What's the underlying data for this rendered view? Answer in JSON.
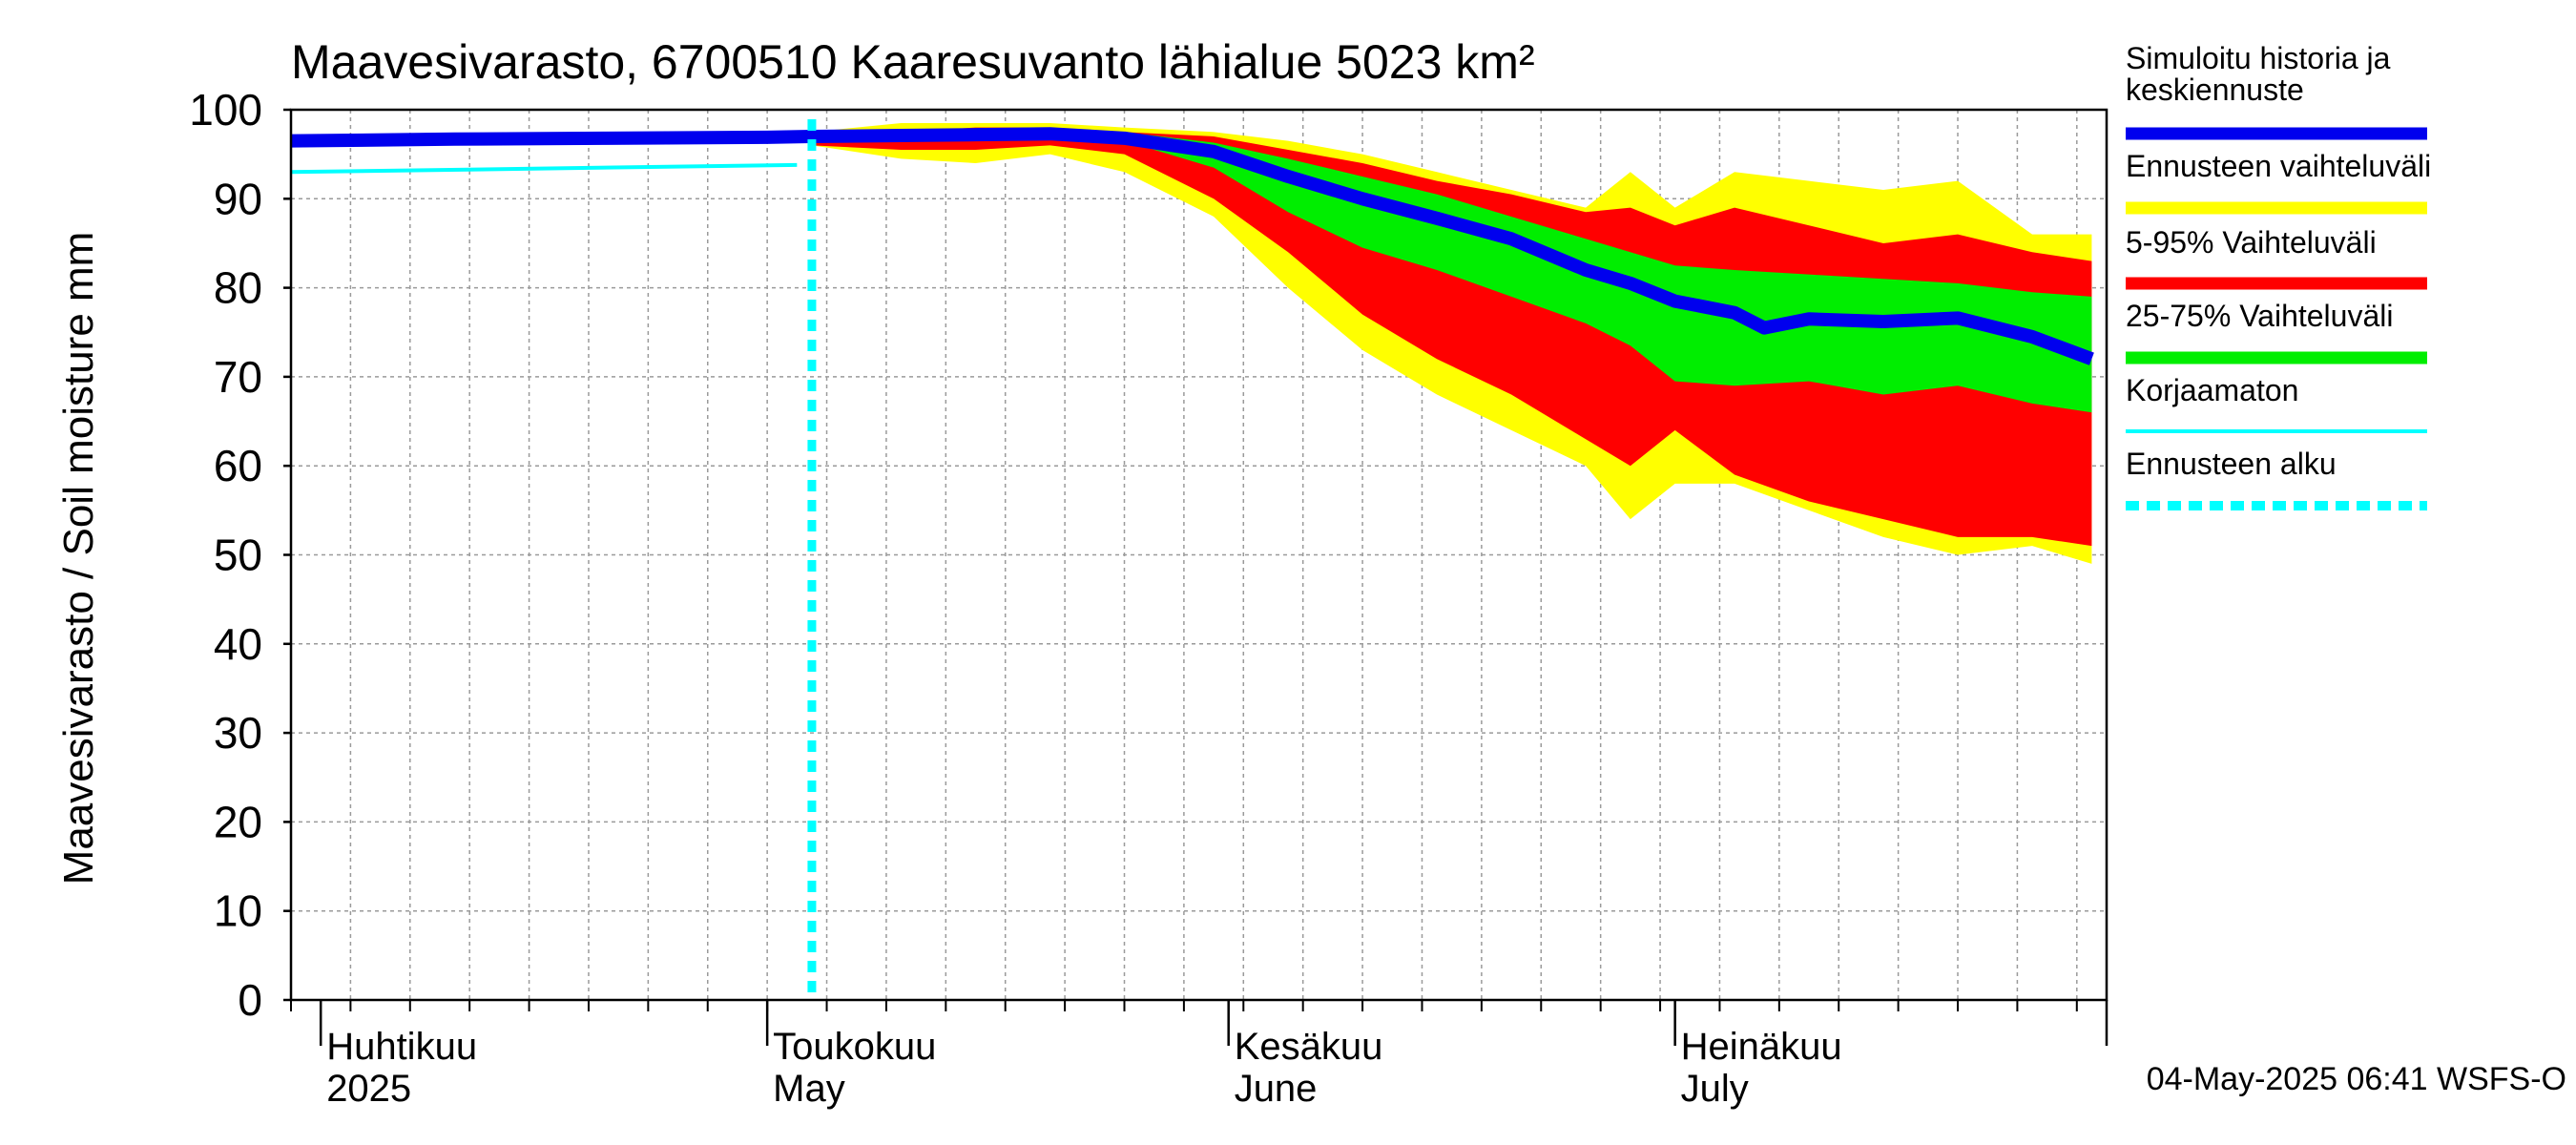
{
  "chart_data": {
    "type": "area",
    "title": "Maavesivarasto, 6700510 Kaaresuvanto lähialue 5023 km²",
    "ylabel": "Maavesivarasto / Soil moisture   mm",
    "ylim": [
      0,
      100
    ],
    "yticks": [
      0,
      10,
      20,
      30,
      40,
      50,
      60,
      70,
      80,
      90,
      100
    ],
    "xlim": [
      "2025-03-30",
      "2025-07-30"
    ],
    "month_labels": [
      {
        "fi": "Huhtikuu",
        "en": "2025",
        "date": "2025-04-01"
      },
      {
        "fi": "Toukokuu",
        "en": "May",
        "date": "2025-05-01"
      },
      {
        "fi": "Kesäkuu",
        "en": "June",
        "date": "2025-06-01"
      },
      {
        "fi": "Heinäkuu",
        "en": "July",
        "date": "2025-07-01"
      }
    ],
    "forecast_start": "2025-05-04",
    "legend": {
      "placement": "right",
      "entries": [
        {
          "label": "Simuloitu historia ja keskiennuste",
          "color": "#0000ee",
          "style": "thick"
        },
        {
          "label": "Ennusteen vaihteluväli",
          "color": "#ffff00",
          "style": "thick"
        },
        {
          "label": "5-95% Vaihteluväli",
          "color": "#ff0000",
          "style": "thick"
        },
        {
          "label": "25-75% Vaihteluväli",
          "color": "#00ee00",
          "style": "thick"
        },
        {
          "label": "Korjaamaton",
          "color": "#00ffff",
          "style": "thin"
        },
        {
          "label": "Ennusteen alku",
          "color": "#00ffff",
          "style": "dashed"
        }
      ]
    },
    "series": [
      {
        "name": "Ennusteen vaihteluväli",
        "color": "#ffff00",
        "x": [
          "2025-05-04",
          "2025-05-10",
          "2025-05-15",
          "2025-05-20",
          "2025-05-25",
          "2025-05-31",
          "2025-06-05",
          "2025-06-10",
          "2025-06-15",
          "2025-06-20",
          "2025-06-25",
          "2025-06-28",
          "2025-07-01",
          "2025-07-05",
          "2025-07-10",
          "2025-07-15",
          "2025-07-20",
          "2025-07-25",
          "2025-07-29"
        ],
        "upper": [
          97.5,
          98.5,
          98.5,
          98.5,
          98,
          97.5,
          96.5,
          95,
          93,
          91,
          89,
          93,
          89,
          93,
          92,
          91,
          92,
          86,
          86
        ],
        "lower": [
          96,
          94.5,
          94,
          95,
          93,
          88,
          80,
          73,
          68,
          64,
          60,
          54,
          58,
          58,
          55,
          52,
          50,
          51,
          49
        ]
      },
      {
        "name": "5-95% Vaihteluväli",
        "color": "#ff0000",
        "x": [
          "2025-05-04",
          "2025-05-10",
          "2025-05-15",
          "2025-05-20",
          "2025-05-25",
          "2025-05-31",
          "2025-06-05",
          "2025-06-10",
          "2025-06-15",
          "2025-06-20",
          "2025-06-25",
          "2025-06-28",
          "2025-07-01",
          "2025-07-05",
          "2025-07-10",
          "2025-07-15",
          "2025-07-20",
          "2025-07-25",
          "2025-07-29"
        ],
        "upper": [
          97.5,
          97.5,
          98,
          98,
          97.5,
          97,
          95.5,
          94,
          92,
          90.5,
          88.5,
          89,
          87,
          89,
          87,
          85,
          86,
          84,
          83
        ],
        "lower": [
          96,
          95.5,
          95.5,
          96,
          95,
          90,
          84,
          77,
          72,
          68,
          63,
          60,
          64,
          59,
          56,
          54,
          52,
          52,
          51
        ]
      },
      {
        "name": "25-75% Vaihteluväli",
        "color": "#00ee00",
        "x": [
          "2025-05-04",
          "2025-05-10",
          "2025-05-15",
          "2025-05-20",
          "2025-05-25",
          "2025-05-31",
          "2025-06-05",
          "2025-06-10",
          "2025-06-15",
          "2025-06-20",
          "2025-06-25",
          "2025-06-28",
          "2025-07-01",
          "2025-07-05",
          "2025-07-10",
          "2025-07-15",
          "2025-07-20",
          "2025-07-25",
          "2025-07-29"
        ],
        "upper": [
          97.3,
          97.5,
          97.6,
          97.8,
          97.5,
          96.3,
          94.5,
          92.5,
          90.5,
          88,
          85.5,
          84,
          82.5,
          82,
          81.5,
          81,
          80.5,
          79.5,
          79
        ],
        "lower": [
          96.6,
          96.5,
          96.8,
          97,
          96.5,
          93.5,
          88.5,
          84.5,
          82,
          79,
          76,
          73.5,
          69.5,
          69,
          69.5,
          68,
          69,
          67,
          66
        ]
      },
      {
        "name": "Simuloitu historia ja keskiennuste",
        "color": "#0000ee",
        "x": [
          "2025-03-30",
          "2025-04-10",
          "2025-04-20",
          "2025-05-01",
          "2025-05-04",
          "2025-05-10",
          "2025-05-15",
          "2025-05-20",
          "2025-05-25",
          "2025-05-31",
          "2025-06-05",
          "2025-06-10",
          "2025-06-15",
          "2025-06-20",
          "2025-06-25",
          "2025-06-28",
          "2025-07-01",
          "2025-07-05",
          "2025-07-07",
          "2025-07-10",
          "2025-07-15",
          "2025-07-20",
          "2025-07-25",
          "2025-07-29"
        ],
        "values": [
          96.5,
          96.7,
          96.8,
          96.9,
          97,
          97.1,
          97.2,
          97.3,
          96.8,
          95.3,
          92.5,
          90,
          87.8,
          85.5,
          82,
          80.5,
          78.5,
          77.2,
          75.5,
          76.5,
          76.2,
          76.6,
          74.5,
          72
        ]
      },
      {
        "name": "Korjaamaton",
        "color": "#00ffff",
        "x": [
          "2025-03-30",
          "2025-05-03"
        ],
        "values": [
          93,
          93.8
        ]
      }
    ]
  },
  "footer": {
    "timestamp": "04-May-2025 06:41 WSFS-O"
  }
}
